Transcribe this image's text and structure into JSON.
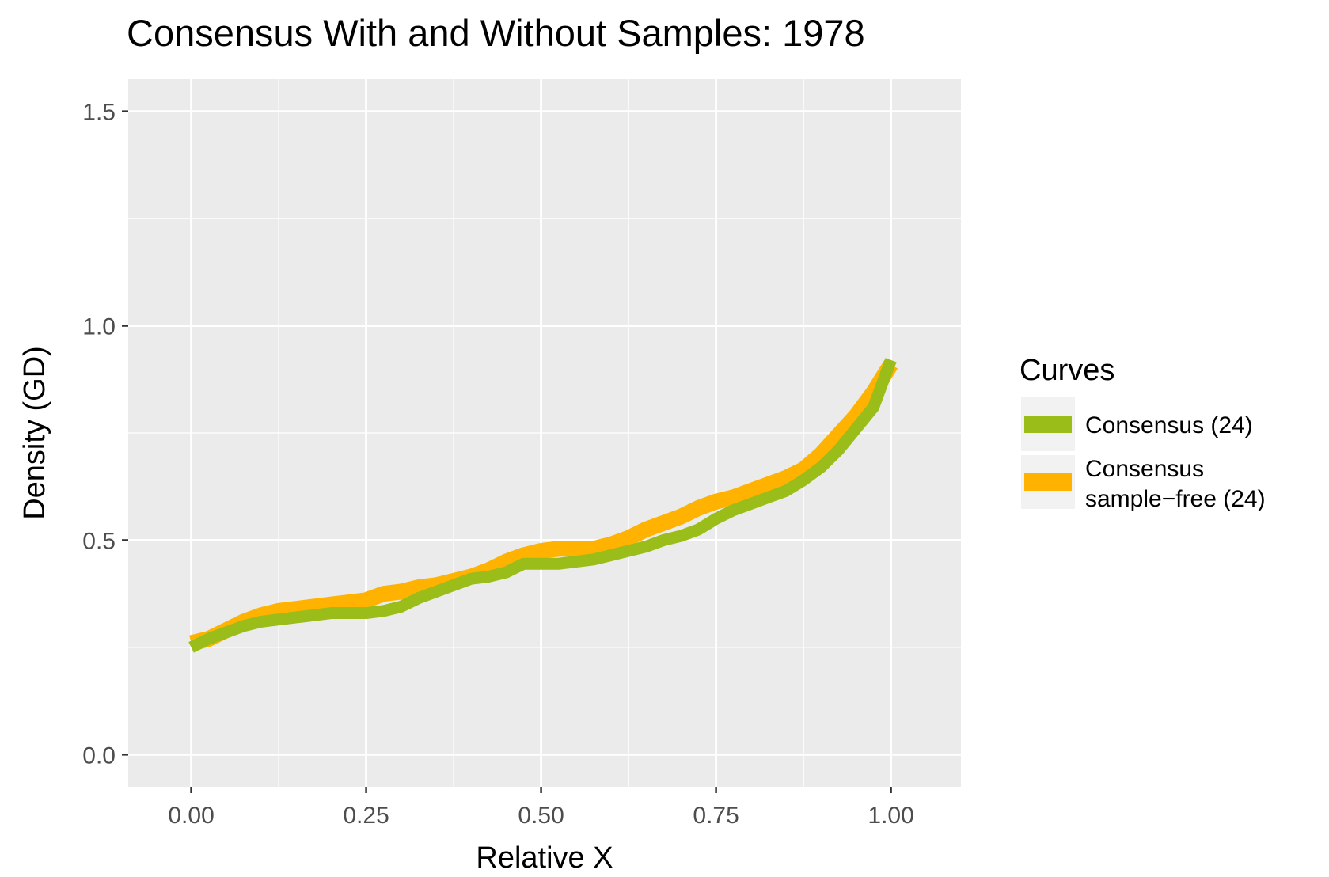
{
  "chart_data": {
    "type": "line",
    "title": "Consensus With and Without Samples:  1978",
    "xlabel": "Relative X",
    "ylabel": "Density (GD)",
    "xlim": [
      -0.09,
      1.1
    ],
    "ylim": [
      -0.075,
      1.575
    ],
    "x_ticks": [
      0.0,
      0.25,
      0.5,
      0.75,
      1.0
    ],
    "x_tick_labels": [
      "0.00",
      "0.25",
      "0.50",
      "0.75",
      "1.00"
    ],
    "y_ticks": [
      0.0,
      0.5,
      1.0,
      1.5
    ],
    "y_tick_labels": [
      "0.0",
      "0.5",
      "1.0",
      "1.5"
    ],
    "grid": true,
    "legend": {
      "title": "Curves",
      "position": "right",
      "entries": [
        {
          "label_line1": "Consensus (24)",
          "label_line2": "",
          "color": "#9abd1a"
        },
        {
          "label_line1": "Consensus",
          "label_line2": "sample−free (24)",
          "color": "#ffb300"
        }
      ]
    },
    "series": [
      {
        "name": "Consensus sample−free (24)",
        "color": "#ffb300",
        "x": [
          0.0,
          0.025,
          0.05,
          0.075,
          0.1,
          0.125,
          0.15,
          0.175,
          0.2,
          0.225,
          0.25,
          0.275,
          0.3,
          0.325,
          0.35,
          0.375,
          0.4,
          0.425,
          0.45,
          0.475,
          0.5,
          0.525,
          0.55,
          0.575,
          0.6,
          0.625,
          0.65,
          0.675,
          0.7,
          0.725,
          0.75,
          0.775,
          0.8,
          0.825,
          0.85,
          0.875,
          0.9,
          0.925,
          0.95,
          0.975,
          1.0
        ],
        "y": [
          0.26,
          0.27,
          0.29,
          0.31,
          0.325,
          0.335,
          0.34,
          0.345,
          0.35,
          0.355,
          0.36,
          0.375,
          0.38,
          0.39,
          0.395,
          0.405,
          0.415,
          0.43,
          0.45,
          0.465,
          0.475,
          0.48,
          0.48,
          0.48,
          0.49,
          0.505,
          0.525,
          0.54,
          0.555,
          0.575,
          0.59,
          0.6,
          0.615,
          0.63,
          0.645,
          0.665,
          0.7,
          0.745,
          0.79,
          0.845,
          0.91
        ]
      },
      {
        "name": "Consensus (24)",
        "color": "#9abd1a",
        "x": [
          0.0,
          0.025,
          0.05,
          0.075,
          0.1,
          0.125,
          0.15,
          0.175,
          0.2,
          0.225,
          0.25,
          0.275,
          0.3,
          0.325,
          0.35,
          0.375,
          0.4,
          0.425,
          0.45,
          0.475,
          0.5,
          0.525,
          0.55,
          0.575,
          0.6,
          0.625,
          0.65,
          0.675,
          0.7,
          0.725,
          0.75,
          0.775,
          0.8,
          0.825,
          0.85,
          0.875,
          0.9,
          0.925,
          0.95,
          0.975,
          1.0
        ],
        "y": [
          0.25,
          0.27,
          0.285,
          0.3,
          0.31,
          0.315,
          0.32,
          0.325,
          0.33,
          0.33,
          0.33,
          0.335,
          0.345,
          0.365,
          0.38,
          0.395,
          0.41,
          0.415,
          0.425,
          0.445,
          0.445,
          0.445,
          0.45,
          0.455,
          0.465,
          0.475,
          0.485,
          0.5,
          0.51,
          0.525,
          0.55,
          0.57,
          0.585,
          0.6,
          0.615,
          0.64,
          0.67,
          0.71,
          0.76,
          0.81,
          0.92
        ]
      }
    ]
  }
}
